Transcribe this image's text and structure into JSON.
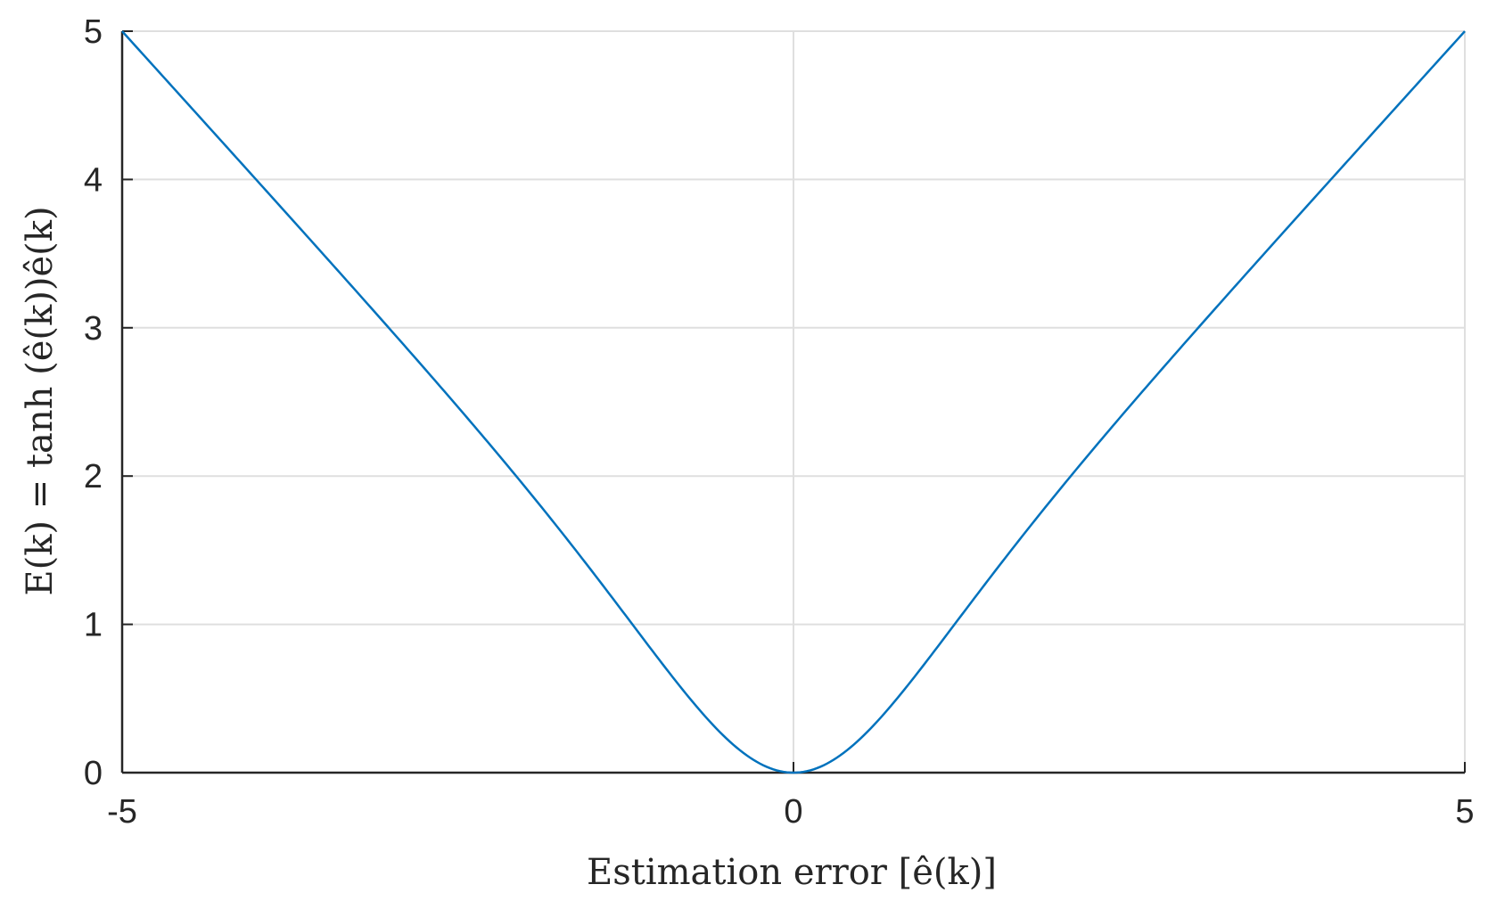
{
  "chart_data": {
    "type": "line",
    "xlabel": "Estimation error [ê(k)]",
    "ylabel": "E(k) = tanh (ê(k))ê(k)",
    "xlim": [
      -5,
      5
    ],
    "ylim": [
      0,
      5
    ],
    "x_ticks": [
      -5,
      0,
      5
    ],
    "x_tick_labels": [
      "-5",
      "0",
      "5"
    ],
    "y_ticks": [
      0,
      1,
      2,
      3,
      4,
      5
    ],
    "y_tick_labels": [
      "0",
      "1",
      "2",
      "3",
      "4",
      "5"
    ],
    "grid": true,
    "series": [
      {
        "color": "#0072BD",
        "x": [
          -5,
          -4.5,
          -4,
          -3.5,
          -3,
          -2.5,
          -2,
          -1.75,
          -1.5,
          -1.25,
          -1,
          -0.75,
          -0.5,
          -0.25,
          0,
          0.25,
          0.5,
          0.75,
          1,
          1.25,
          1.5,
          1.75,
          2,
          2.5,
          3,
          3.5,
          4,
          4.5,
          5
        ],
        "y": [
          4.9995,
          4.4989,
          3.9973,
          3.4936,
          2.9852,
          2.4671,
          1.9281,
          1.6455,
          1.3576,
          1.0592,
          0.7616,
          0.4771,
          0.2311,
          0.0612,
          0,
          0.0612,
          0.2311,
          0.4771,
          0.7616,
          1.0592,
          1.3576,
          1.6455,
          1.9281,
          2.4671,
          2.9852,
          3.4936,
          3.9973,
          4.4989,
          4.9995
        ]
      }
    ]
  }
}
